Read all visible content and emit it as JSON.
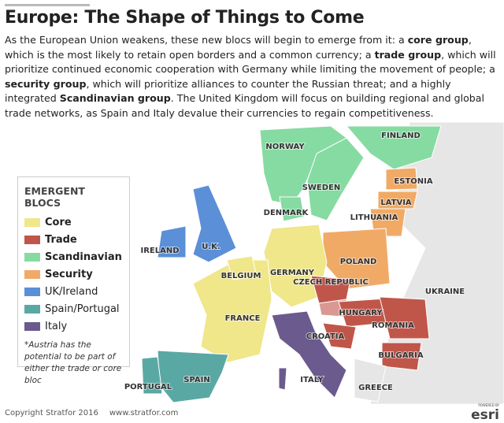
{
  "header": {
    "title": "Europe: The Shape of Things to Come",
    "intro": [
      {
        "text": "As the European Union weakens, these new blocs will begin to emerge from it: a ",
        "bold": false
      },
      {
        "text": "core group",
        "bold": true
      },
      {
        "text": ", which is the most likely to retain open borders and a common currency; a ",
        "bold": false
      },
      {
        "text": "trade group",
        "bold": true
      },
      {
        "text": ", which will prioritize continued economic cooperation with Germany while limiting the movement of people; a ",
        "bold": false
      },
      {
        "text": "security group",
        "bold": true
      },
      {
        "text": ", which will prioritize alliances to counter the Russian threat; and a highly integrated ",
        "bold": false
      },
      {
        "text": "Scandinavian group",
        "bold": true
      },
      {
        "text": ". The United Kingdom will focus on building regional and global trade networks, as Spain and Italy devalue their currencies to regain competitiveness.",
        "bold": false
      }
    ]
  },
  "legend": {
    "title": "EMERGENT BLOCS",
    "items": [
      {
        "label": "Core",
        "color": "#f0e68a"
      },
      {
        "label": "Trade",
        "color": "#c0564a"
      },
      {
        "label": "Scandinavian",
        "color": "#86dba2"
      },
      {
        "label": "Security",
        "color": "#f0aa66"
      },
      {
        "label": "UK/Ireland",
        "color": "#5b8fd8"
      },
      {
        "label": "Spain/Portugal",
        "color": "#5aa8a4"
      },
      {
        "label": "Italy",
        "color": "#6b5a8e"
      }
    ],
    "note": "*Austria has the potential to be part of either the trade or core bloc"
  },
  "map": {
    "labels": [
      "NORWAY",
      "FINLAND",
      "SWEDEN",
      "ESTONIA",
      "LATVIA",
      "DENMARK",
      "LITHUANIA",
      "IRELAND",
      "U.K.",
      "POLAND",
      "BELGIUM",
      "GERMANY",
      "CZECH REPUBLIC",
      "UKRAINE",
      "FRANCE",
      "HUNGARY",
      "ROMANIA",
      "CROATIA",
      "BULGARIA",
      "SPAIN",
      "PORTUGAL",
      "ITALY",
      "GREECE"
    ]
  },
  "footer": {
    "copyright": "Copyright Stratfor 2016",
    "url": "www.stratfor.com",
    "logo_caption": "POWERED BY",
    "logo": "esri"
  }
}
